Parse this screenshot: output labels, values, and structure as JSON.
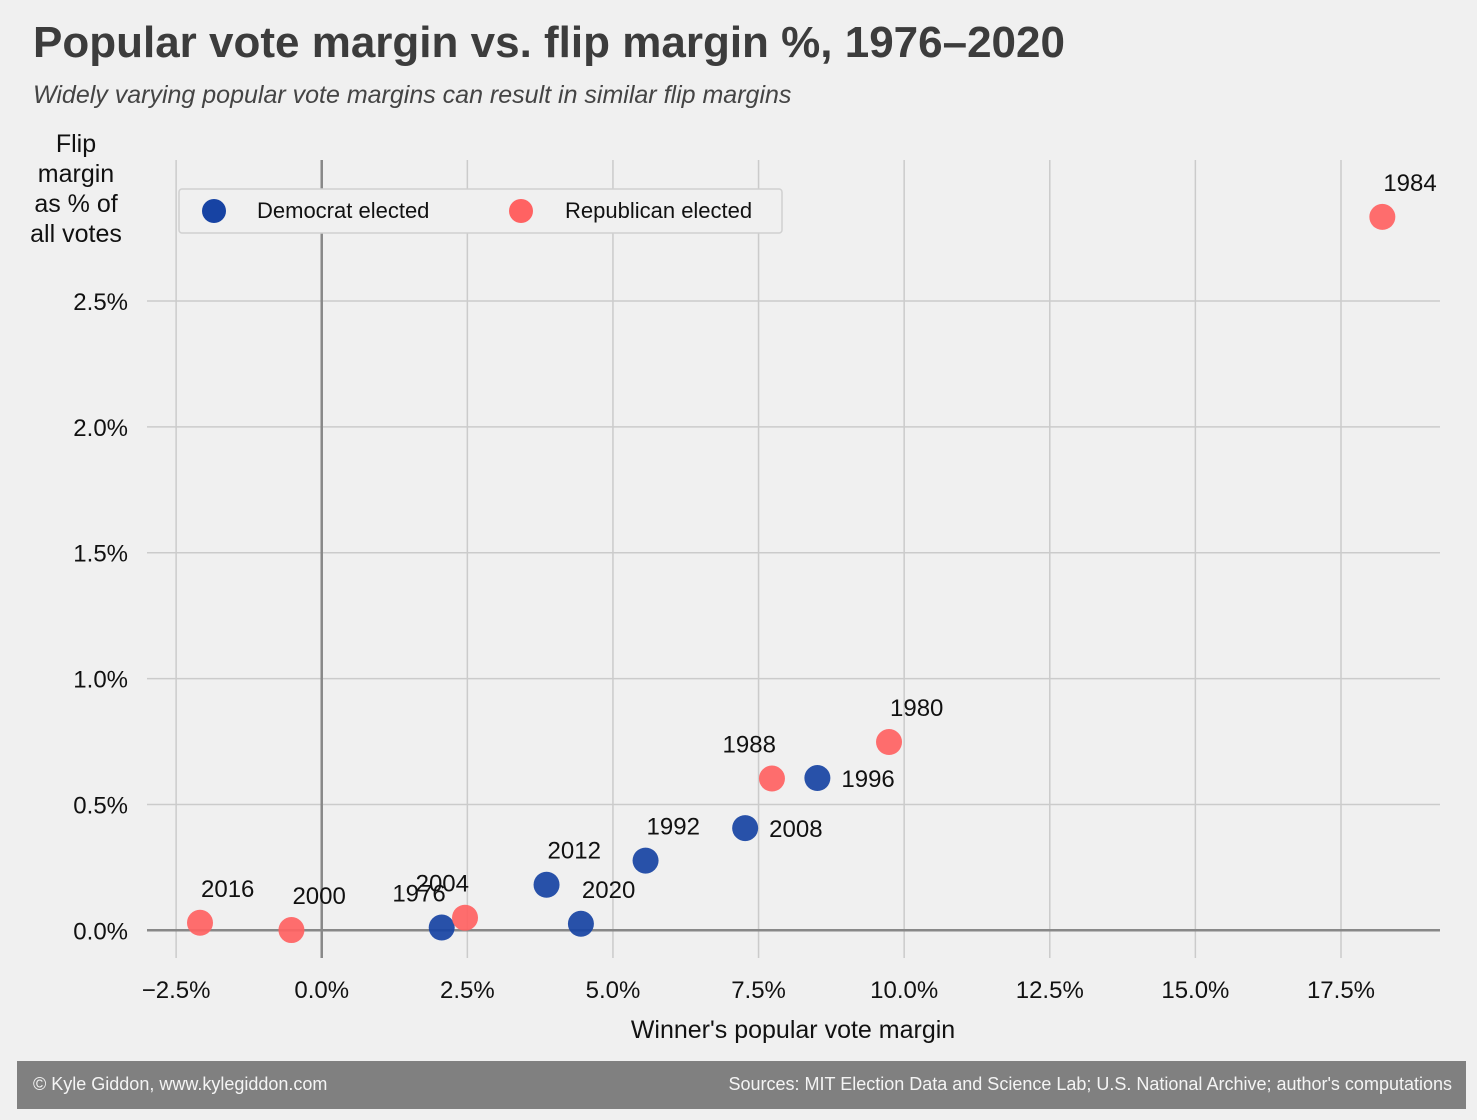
{
  "title": "Popular vote margin vs. flip margin %, 1976–2020",
  "subtitle": "Widely varying popular vote margins can result in similar flip margins",
  "footer": {
    "credit": "© Kyle Giddon, www.kylegiddon.com",
    "sources": "Sources: MIT Election Data and Science Lab; U.S. National Archive; author's computations"
  },
  "colors": {
    "democrat": "#1743a3",
    "republican": "#ff6262",
    "background": "#f0f0f0",
    "grid": "#cbcbcb",
    "zero_line": "#888888"
  },
  "chart_data": {
    "type": "scatter",
    "xlabel": "Winner's popular vote margin",
    "ylabel_lines": [
      "Flip",
      "margin",
      "as % of",
      "all votes"
    ],
    "xlim": [
      -3.0,
      19.2
    ],
    "ylim": [
      -0.11,
      3.06
    ],
    "x_ticks": [
      -2.5,
      0,
      2.5,
      5,
      7.5,
      10,
      12.5,
      15,
      17.5
    ],
    "x_tick_labels": [
      "−2.5%",
      "0.0%",
      "2.5%",
      "5.0%",
      "7.5%",
      "10.0%",
      "12.5%",
      "15.0%",
      "17.5%"
    ],
    "y_ticks": [
      0,
      0.5,
      1.0,
      1.5,
      2.0,
      2.5
    ],
    "y_tick_labels": [
      "0.0%",
      "0.5%",
      "1.0%",
      "1.5%",
      "2.0%",
      "2.5%"
    ],
    "grid": true,
    "legend": {
      "placement": "top-left",
      "entries": [
        {
          "key": "democrat",
          "label": "Democrat elected"
        },
        {
          "key": "republican",
          "label": "Republican elected"
        }
      ]
    },
    "points": [
      {
        "year": "1976",
        "x": 2.06,
        "y": 0.011,
        "party": "democrat",
        "label_pos": "upper-left"
      },
      {
        "year": "1980",
        "x": 9.74,
        "y": 0.748,
        "party": "republican",
        "label_pos": "upper-right"
      },
      {
        "year": "1984",
        "x": 18.21,
        "y": 2.834,
        "party": "republican",
        "label_pos": "upper-right"
      },
      {
        "year": "1988",
        "x": 7.73,
        "y": 0.603,
        "party": "republican",
        "label_pos": "upper-left"
      },
      {
        "year": "1992",
        "x": 5.56,
        "y": 0.277,
        "party": "democrat",
        "label_pos": "upper-right"
      },
      {
        "year": "1996",
        "x": 8.51,
        "y": 0.605,
        "party": "democrat",
        "label_pos": "right"
      },
      {
        "year": "2000",
        "x": -0.52,
        "y": 0.001,
        "party": "republican",
        "label_pos": "upper-right"
      },
      {
        "year": "2004",
        "x": 2.46,
        "y": 0.05,
        "party": "republican",
        "label_pos": "upper-left"
      },
      {
        "year": "2008",
        "x": 7.27,
        "y": 0.406,
        "party": "democrat",
        "label_pos": "right"
      },
      {
        "year": "2012",
        "x": 3.86,
        "y": 0.181,
        "party": "democrat",
        "label_pos": "upper-right"
      },
      {
        "year": "2016",
        "x": -2.09,
        "y": 0.03,
        "party": "republican",
        "label_pos": "upper-right"
      },
      {
        "year": "2020",
        "x": 4.45,
        "y": 0.026,
        "party": "democrat",
        "label_pos": "upper-right"
      }
    ]
  }
}
